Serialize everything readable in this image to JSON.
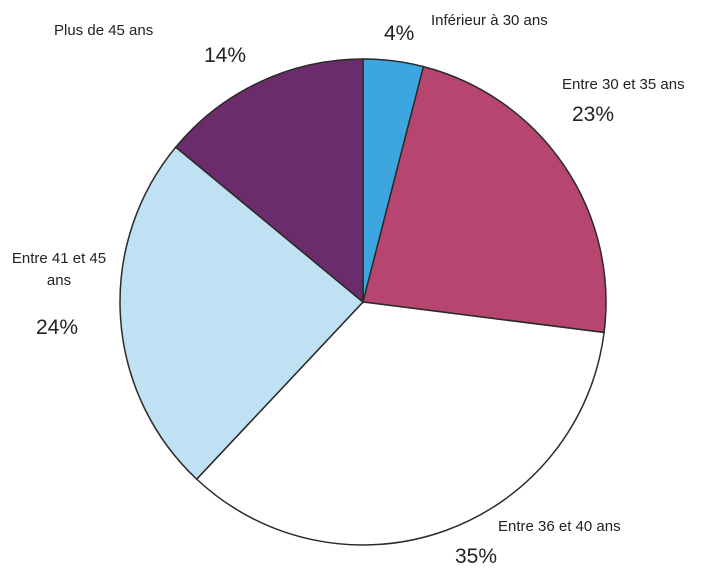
{
  "chart_data": {
    "type": "pie",
    "categories": [
      "Inférieur à 30 ans",
      "Entre 30 et 35 ans",
      "Entre 36 et 40 ans",
      "Entre 41 et 45 ans",
      "Plus de 45 ans"
    ],
    "values": [
      4,
      23,
      35,
      24,
      14
    ],
    "value_labels": [
      "4%",
      "23%",
      "35%",
      "24%",
      "14%"
    ],
    "colors": [
      "#3ea6df",
      "#b6466f",
      "#ffffff",
      "#bfe1f3",
      "#6c2c6c"
    ]
  }
}
